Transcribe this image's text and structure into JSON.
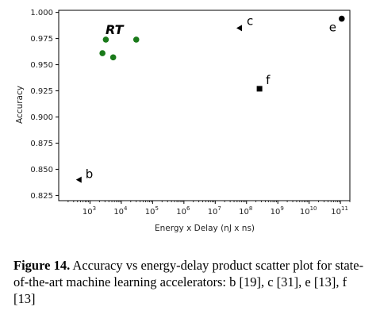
{
  "chart_data": {
    "type": "scatter",
    "xlabel": "Energy x Delay (nJ x ns)",
    "ylabel": "Accuracy",
    "x_scale": "log",
    "xlim": [
      100,
      200000000000
    ],
    "ylim": [
      0.82,
      1.002
    ],
    "grid": false,
    "x_tick_exponents": [
      "3",
      "4",
      "5",
      "6",
      "7",
      "8",
      "9",
      "10",
      "11"
    ],
    "y_ticks": [
      "1.000",
      "0.975",
      "0.950",
      "0.925",
      "0.900",
      "0.875",
      "0.850",
      "0.825"
    ],
    "group_label": "RT",
    "group_color": "#1a7a1a",
    "rt_points": [
      {
        "x": 2500,
        "y": 0.961
      },
      {
        "x": 3200,
        "y": 0.974
      },
      {
        "x": 5500,
        "y": 0.957
      },
      {
        "x": 30000,
        "y": 0.974
      }
    ],
    "labeled_points": [
      {
        "label": "b",
        "marker": "triangle-left",
        "x": 450,
        "y": 0.84
      },
      {
        "label": "c",
        "marker": "triangle-left",
        "x": 60000000,
        "y": 0.985
      },
      {
        "label": "f",
        "marker": "square",
        "x": 260000000,
        "y": 0.927
      },
      {
        "label": "e",
        "marker": "circle",
        "x": 110000000000,
        "y": 0.994
      }
    ]
  },
  "caption": {
    "figure_number": "Figure 14.",
    "text": "Accuracy vs energy-delay product scatter plot for state-of-the-art machine learning accelerators: b [19], c [31], e [13], f [13]"
  }
}
